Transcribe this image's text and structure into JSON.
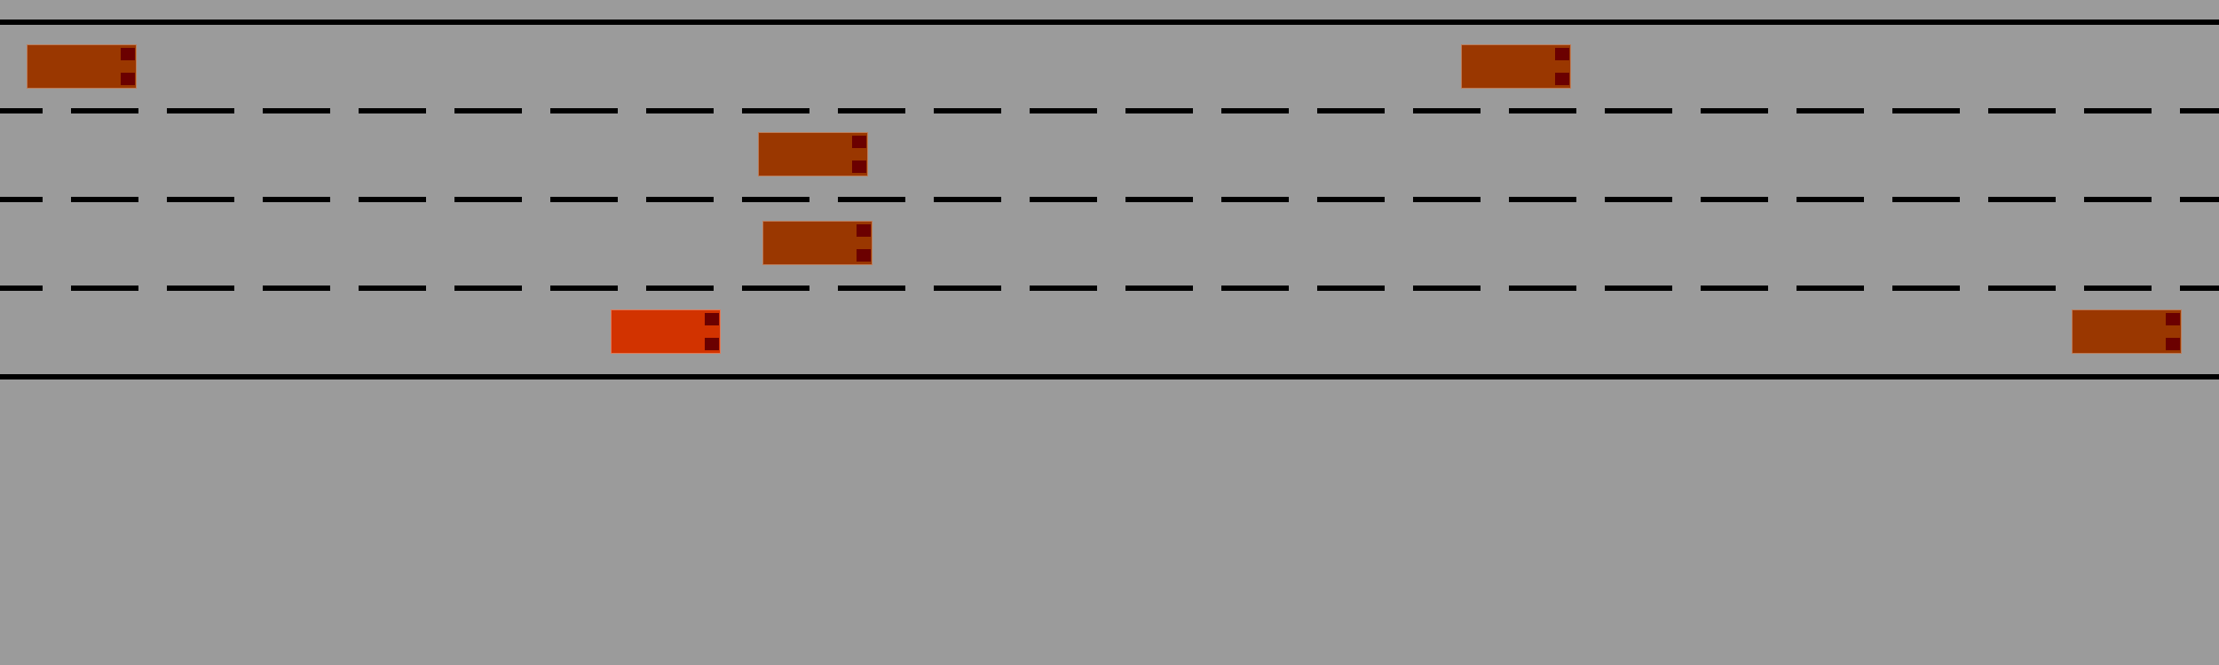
{
  "colors": {
    "road": "#9b9b9b",
    "lane_markings": "#000000",
    "other_vehicle": "#9a3700",
    "ego_vehicle": "#d23300",
    "tail_lights": "#6b0000"
  },
  "road": {
    "lanes": 4,
    "lane_markings": "dashed"
  },
  "vehicles": [
    {
      "id": "car-1",
      "lane": 1,
      "type": "other"
    },
    {
      "id": "car-2",
      "lane": 1,
      "type": "other"
    },
    {
      "id": "car-3",
      "lane": 2,
      "type": "other"
    },
    {
      "id": "car-4",
      "lane": 3,
      "type": "other"
    },
    {
      "id": "ego-car",
      "lane": 4,
      "type": "ego"
    },
    {
      "id": "car-5",
      "lane": 4,
      "type": "other"
    }
  ]
}
